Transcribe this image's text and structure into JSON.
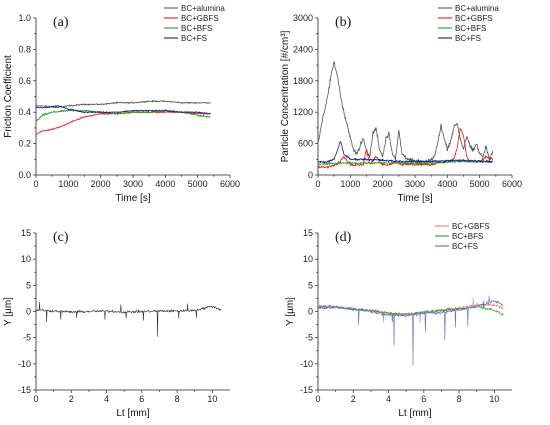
{
  "chart_data": [
    {
      "id": "a",
      "type": "line",
      "panel_label": "(a)",
      "xlabel": "Time [s]",
      "ylabel": "Friction Coefficient",
      "xlim": [
        0,
        6000
      ],
      "ylim": [
        0,
        1.0
      ],
      "xticks": [
        0,
        1000,
        2000,
        3000,
        4000,
        5000,
        6000
      ],
      "xtick_labels": [
        "0",
        "1000",
        "2000",
        "3000",
        "4000",
        "5000",
        "6000"
      ],
      "yticks": [
        0,
        0.2,
        0.4,
        0.6,
        0.8,
        1.0
      ],
      "ytick_labels": [
        "0.0",
        "0.2",
        "0.4",
        "0.6",
        "0.8",
        "1.0"
      ],
      "legend_position": "top-right",
      "series": [
        {
          "name": "BC+alumina",
          "color": "#555555",
          "noise": 0.006,
          "x": [
            0,
            300,
            600,
            1000,
            1500,
            2000,
            2500,
            3000,
            3500,
            4000,
            4500,
            5000,
            5400
          ],
          "y": [
            0.44,
            0.44,
            0.43,
            0.44,
            0.45,
            0.45,
            0.46,
            0.46,
            0.47,
            0.47,
            0.46,
            0.46,
            0.46
          ]
        },
        {
          "name": "BC+GBFS",
          "color": "#e8191a",
          "noise": 0.006,
          "x": [
            0,
            200,
            500,
            800,
            1100,
            1500,
            2000,
            2500,
            3000,
            3500,
            4000,
            4500,
            5000,
            5400
          ],
          "y": [
            0.26,
            0.28,
            0.29,
            0.31,
            0.34,
            0.37,
            0.39,
            0.39,
            0.4,
            0.4,
            0.4,
            0.4,
            0.39,
            0.39
          ]
        },
        {
          "name": "BC+BFS",
          "color": "#1f9e1f",
          "noise": 0.008,
          "x": [
            0,
            200,
            500,
            1000,
            1500,
            2000,
            2500,
            3000,
            3500,
            4000,
            4500,
            5000,
            5400
          ],
          "y": [
            0.34,
            0.38,
            0.4,
            0.41,
            0.41,
            0.4,
            0.39,
            0.4,
            0.4,
            0.41,
            0.4,
            0.38,
            0.37
          ]
        },
        {
          "name": "BC+FS",
          "color": "#1c1c8a",
          "noise": 0.006,
          "x": [
            0,
            300,
            700,
            1000,
            1500,
            2000,
            2500,
            3000,
            3500,
            4000,
            4500,
            5000,
            5400
          ],
          "y": [
            0.43,
            0.43,
            0.44,
            0.42,
            0.4,
            0.4,
            0.4,
            0.41,
            0.41,
            0.41,
            0.4,
            0.4,
            0.39
          ]
        }
      ]
    },
    {
      "id": "b",
      "type": "line",
      "panel_label": "(b)",
      "xlabel": "Time [s]",
      "ylabel": "Particle Concentration [#/cm³]",
      "xlim": [
        0,
        6000
      ],
      "ylim": [
        0,
        3000
      ],
      "xticks": [
        0,
        1000,
        2000,
        3000,
        4000,
        5000,
        6000
      ],
      "xtick_labels": [
        "0",
        "1000",
        "2000",
        "3000",
        "4000",
        "5000",
        "6000"
      ],
      "yticks": [
        0,
        600,
        1200,
        1800,
        2400,
        3000
      ],
      "ytick_labels": [
        "0",
        "600",
        "1200",
        "1800",
        "2400",
        "3000"
      ],
      "legend_position": "top-right",
      "series": [
        {
          "name": "BC+alumina",
          "color": "#555555",
          "noise": 60,
          "x": [
            0,
            150,
            300,
            400,
            500,
            600,
            700,
            800,
            900,
            1000,
            1100,
            1200,
            1300,
            1400,
            1500,
            1600,
            1700,
            1800,
            1900,
            2000,
            2100,
            2200,
            2300,
            2400,
            2500,
            2600,
            2800,
            3000,
            3200,
            3400,
            3600,
            3700,
            3800,
            3900,
            4000,
            4100,
            4200,
            4300,
            4400,
            4500,
            4600,
            4700,
            4800,
            4900,
            5000,
            5100,
            5200,
            5300,
            5400
          ],
          "y": [
            600,
            1100,
            1500,
            1900,
            2150,
            1900,
            1500,
            1200,
            950,
            700,
            500,
            400,
            550,
            700,
            450,
            350,
            800,
            900,
            500,
            350,
            700,
            800,
            400,
            300,
            850,
            400,
            300,
            250,
            250,
            250,
            350,
            600,
            950,
            700,
            500,
            650,
            900,
            1000,
            700,
            500,
            750,
            550,
            450,
            600,
            400,
            350,
            550,
            300,
            450
          ]
        },
        {
          "name": "BC+GBFS",
          "color": "#e8191a",
          "noise": 35,
          "x": [
            0,
            300,
            600,
            800,
            1000,
            1200,
            1400,
            1500,
            1600,
            1800,
            2000,
            2200,
            2400,
            2600,
            2800,
            3000,
            3200,
            3500,
            3800,
            4000,
            4200,
            4300,
            4400,
            4500,
            4600,
            4700,
            4800,
            5000,
            5200,
            5400
          ],
          "y": [
            150,
            150,
            200,
            350,
            200,
            200,
            200,
            500,
            200,
            350,
            200,
            200,
            250,
            200,
            200,
            200,
            200,
            200,
            250,
            250,
            300,
            500,
            900,
            750,
            350,
            250,
            250,
            250,
            350,
            300
          ]
        },
        {
          "name": "BC+BFS",
          "color": "#1f9e1f",
          "noise": 25,
          "x": [
            0,
            500,
            1000,
            1500,
            2000,
            2500,
            3000,
            3500,
            4000,
            4500,
            5000,
            5400
          ],
          "y": [
            200,
            220,
            230,
            230,
            230,
            230,
            220,
            230,
            250,
            260,
            250,
            250
          ]
        },
        {
          "name": "BC+FS",
          "color": "#1c1c8a",
          "noise": 30,
          "x": [
            0,
            300,
            500,
            700,
            800,
            1000,
            1500,
            2000,
            2500,
            3000,
            3500,
            4000,
            4500,
            5000,
            5400
          ],
          "y": [
            250,
            250,
            300,
            650,
            400,
            300,
            300,
            280,
            260,
            260,
            260,
            270,
            280,
            270,
            260
          ]
        }
      ]
    },
    {
      "id": "c",
      "type": "line",
      "panel_label": "(c)",
      "xlabel": "Lt [mm]",
      "ylabel": "Y [µm]",
      "xlim": [
        0,
        11
      ],
      "ylim": [
        -15,
        15
      ],
      "xticks": [
        0,
        2,
        4,
        6,
        8,
        10
      ],
      "xtick_labels": [
        "0",
        "2",
        "4",
        "6",
        "8",
        "10"
      ],
      "yticks": [
        -15,
        -10,
        -5,
        0,
        5,
        10,
        15
      ],
      "ytick_labels": [
        "-15",
        "-10",
        "-5",
        "0",
        "5",
        "10",
        "15"
      ],
      "series": [
        {
          "color": "#333333",
          "noise": 0.35,
          "x": [
            0,
            1,
            2,
            3,
            4,
            5,
            6,
            7,
            8,
            9,
            10,
            10.5
          ],
          "y": [
            0.3,
            0.1,
            -0.1,
            0.0,
            0.1,
            -0.1,
            0.0,
            0.1,
            0.1,
            0.2,
            1.0,
            0.3
          ],
          "spikes": [
            [
              0.6,
              -2.0
            ],
            [
              1.4,
              -1.5
            ],
            [
              2.3,
              -1.2
            ],
            [
              3.9,
              -1.5
            ],
            [
              5.1,
              -1.3
            ],
            [
              6.1,
              -1.7
            ],
            [
              6.9,
              -4.8
            ],
            [
              8.1,
              -1.3
            ],
            [
              9.1,
              -1.2
            ],
            [
              0.2,
              1.8
            ],
            [
              4.8,
              1.3
            ],
            [
              8.6,
              1.5
            ]
          ]
        }
      ]
    },
    {
      "id": "d",
      "type": "line",
      "panel_label": "(d)",
      "xlabel": "Lt [mm]",
      "ylabel": "Y [µm]",
      "xlim": [
        0,
        11
      ],
      "ylim": [
        -15,
        15
      ],
      "xticks": [
        0,
        2,
        4,
        6,
        8,
        10
      ],
      "xtick_labels": [
        "0",
        "2",
        "4",
        "6",
        "8",
        "10"
      ],
      "yticks": [
        -15,
        -10,
        -5,
        0,
        5,
        10,
        15
      ],
      "ytick_labels": [
        "-15",
        "-10",
        "-5",
        "0",
        "5",
        "10",
        "15"
      ],
      "legend_position": "top-right",
      "series": [
        {
          "name": "BC+GBFS",
          "color": "#f08080",
          "noise": 0.45,
          "x": [
            0,
            1,
            2,
            3,
            4,
            5,
            6,
            7,
            8,
            9,
            10,
            10.5
          ],
          "y": [
            1.0,
            0.9,
            0.5,
            0.2,
            -0.4,
            -0.6,
            -0.2,
            0.3,
            0.6,
            1.3,
            1.2,
            0.6
          ],
          "spikes": [
            [
              3.7,
              -2.0
            ],
            [
              8.8,
              2.6
            ],
            [
              5.8,
              -2.3
            ]
          ]
        },
        {
          "name": "BC+BFS",
          "color": "#1f9e1f",
          "noise": 0.35,
          "x": [
            0,
            1,
            2,
            3,
            4,
            5,
            6,
            7,
            8,
            9,
            10,
            10.5
          ],
          "y": [
            0.6,
            0.8,
            0.4,
            0.2,
            -0.3,
            -0.5,
            -0.1,
            0.2,
            0.5,
            0.9,
            0.3,
            -0.7
          ],
          "spikes": [
            [
              4.2,
              -2.0
            ],
            [
              9.4,
              2.0
            ]
          ]
        },
        {
          "name": "BC+FS",
          "color": "#6666cc",
          "noise": 0.45,
          "x": [
            0,
            1,
            2,
            3,
            4,
            5,
            6,
            7,
            8,
            9,
            10,
            10.5
          ],
          "y": [
            1.0,
            0.8,
            0.5,
            0.0,
            -0.6,
            -0.8,
            -0.3,
            -0.2,
            0.3,
            1.0,
            2.0,
            1.3
          ],
          "spikes": [
            [
              4.3,
              -6.5
            ],
            [
              5.4,
              -10.3
            ],
            [
              6.1,
              -4.0
            ],
            [
              7.2,
              -5.5
            ],
            [
              7.8,
              -3.0
            ],
            [
              2.3,
              -2.5
            ],
            [
              9.7,
              3.0
            ],
            [
              8.5,
              -2.8
            ]
          ]
        }
      ]
    }
  ]
}
